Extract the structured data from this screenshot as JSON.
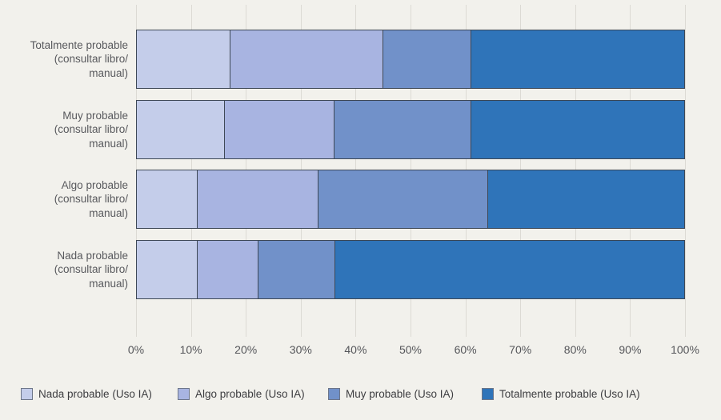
{
  "chart_data": {
    "type": "bar",
    "subtype": "horizontal-stacked-100",
    "title": "",
    "xlabel": "",
    "ylabel": "",
    "xlim": [
      0,
      100
    ],
    "grid": "vertical",
    "legend_position": "bottom",
    "x_ticks": [
      "0%",
      "10%",
      "20%",
      "30%",
      "40%",
      "50%",
      "60%",
      "70%",
      "80%",
      "90%",
      "100%"
    ],
    "categories": [
      {
        "label": "Totalmente probable (consultar libro/manual)",
        "lines": [
          "Totalmente probable",
          "(consultar libro/",
          "manual)"
        ]
      },
      {
        "label": "Muy probable (consultar libro/manual)",
        "lines": [
          "Muy probable",
          "(consultar libro/",
          "manual)"
        ]
      },
      {
        "label": "Algo probable (consultar libro/manual)",
        "lines": [
          "Algo probable",
          "(consultar libro/",
          "manual)"
        ]
      },
      {
        "label": "Nada probable (consultar libro/manual)",
        "lines": [
          "Nada probable",
          "(consultar libro/",
          "manual)"
        ]
      }
    ],
    "series": [
      {
        "name": "Nada probable (Uso IA)",
        "color": "#c4cdea",
        "values": [
          17,
          16,
          11,
          11
        ]
      },
      {
        "name": "Algo probable (Uso IA)",
        "color": "#a8b4e1",
        "values": [
          28,
          20,
          22,
          11
        ]
      },
      {
        "name": "Muy probable (Uso IA)",
        "color": "#7191c9",
        "values": [
          16,
          25,
          31,
          14
        ]
      },
      {
        "name": "Totalmente probable (Uso IA)",
        "color": "#2f74b9",
        "values": [
          39,
          39,
          36,
          64
        ]
      }
    ]
  },
  "style": {
    "background_color": "#f2f1ec",
    "gridline_color": "#dcdad4",
    "bar_border_color": "#3e4856",
    "axis_text_color": "#55565a",
    "category_text_color": "#58595d",
    "legend_text_color": "#3d3d40",
    "legend_swatch_border_color": "#6d7689"
  }
}
